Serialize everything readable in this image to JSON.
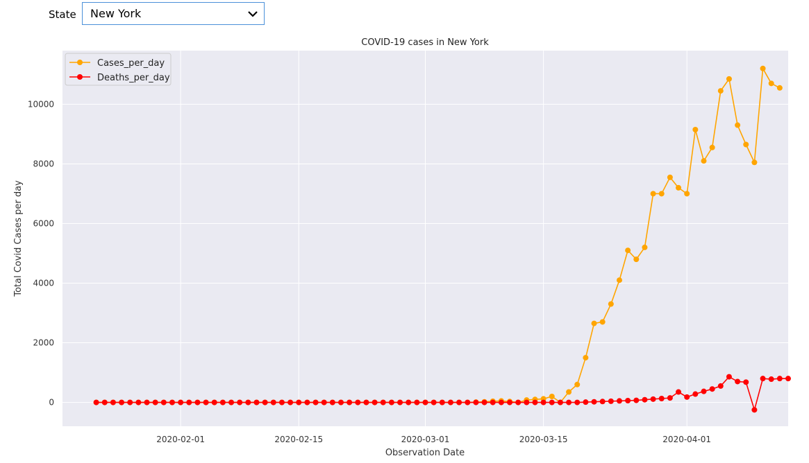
{
  "controls": {
    "state_label": "State",
    "state_value": "New York",
    "chevron_icon": "chevron-down-icon"
  },
  "chart_data": {
    "type": "line",
    "title": "COVID-19 cases in New York",
    "xlabel": "Observation Date",
    "ylabel": "Total Covid Cases per day",
    "x_start": "2020-01-22",
    "x_end": "2020-04-10",
    "xlim": [
      "2020-01-18",
      "2020-04-13"
    ],
    "ylim": [
      -800,
      11800
    ],
    "xticks": [
      "2020-02-01",
      "2020-02-15",
      "2020-03-01",
      "2020-03-15",
      "2020-04-01"
    ],
    "yticks": [
      0,
      2000,
      4000,
      6000,
      8000,
      10000
    ],
    "grid": true,
    "legend_position": "top-left",
    "background": "#eaeaf2",
    "series": [
      {
        "name": "Cases_per_day",
        "color": "#ffa500",
        "values": [
          0,
          0,
          0,
          0,
          0,
          0,
          0,
          0,
          0,
          0,
          0,
          0,
          0,
          0,
          0,
          0,
          0,
          0,
          0,
          0,
          0,
          0,
          0,
          0,
          0,
          0,
          0,
          0,
          0,
          0,
          0,
          0,
          0,
          0,
          0,
          0,
          0,
          0,
          0,
          0,
          0,
          0,
          0,
          0,
          0,
          10,
          20,
          40,
          50,
          30,
          0,
          80,
          100,
          120,
          200,
          0,
          350,
          600,
          1500,
          2650,
          2700,
          3300,
          4100,
          5100,
          4800,
          5200,
          7000,
          7000,
          7550,
          7200,
          7000,
          9150,
          8100,
          8550,
          10450,
          10850,
          9300,
          8650,
          8050,
          11200,
          10700,
          10550
        ]
      },
      {
        "name": "Deaths_per_day",
        "color": "#ff0000",
        "values": [
          0,
          0,
          0,
          0,
          0,
          0,
          0,
          0,
          0,
          0,
          0,
          0,
          0,
          0,
          0,
          0,
          0,
          0,
          0,
          0,
          0,
          0,
          0,
          0,
          0,
          0,
          0,
          0,
          0,
          0,
          0,
          0,
          0,
          0,
          0,
          0,
          0,
          0,
          0,
          0,
          0,
          0,
          0,
          0,
          0,
          0,
          0,
          0,
          0,
          0,
          0,
          0,
          0,
          0,
          0,
          0,
          0,
          0,
          10,
          20,
          30,
          40,
          50,
          60,
          70,
          90,
          110,
          130,
          150,
          350,
          180,
          280,
          370,
          450,
          550,
          860,
          700,
          680,
          -250,
          800,
          780,
          800,
          800
        ]
      }
    ]
  }
}
